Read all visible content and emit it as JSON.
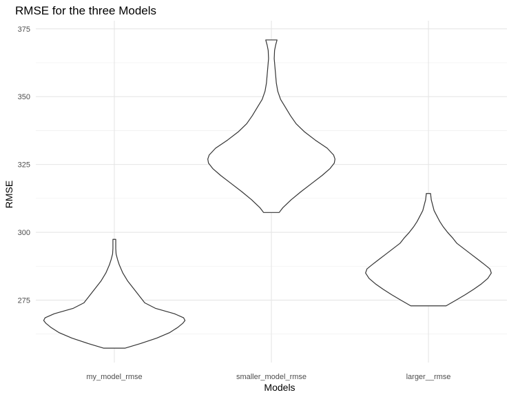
{
  "chart_data": {
    "type": "violin",
    "title": "RMSE for the three Models",
    "xlabel": "Models",
    "ylabel": "RMSE",
    "categories": [
      "my_model_rmse",
      "smaller_model_rmse",
      "larger__rmse"
    ],
    "ylim": [
      252,
      378
    ],
    "yticks": [
      275,
      300,
      325,
      350,
      375
    ],
    "ytick_labels": [
      "275",
      "300",
      "325",
      "350",
      "375"
    ],
    "grid": true,
    "series": [
      {
        "category": "my_model_rmse",
        "min": 257.3,
        "max": 297.4,
        "profile": [
          [
            257.3,
            0.15
          ],
          [
            259,
            0.37
          ],
          [
            261,
            0.6
          ],
          [
            263,
            0.78
          ],
          [
            265,
            0.9
          ],
          [
            266.5,
            0.97
          ],
          [
            267.5,
            1.0
          ],
          [
            268.5,
            0.98
          ],
          [
            270,
            0.85
          ],
          [
            272,
            0.58
          ],
          [
            274,
            0.43
          ],
          [
            276,
            0.37
          ],
          [
            278,
            0.31
          ],
          [
            280,
            0.25
          ],
          [
            282,
            0.19
          ],
          [
            285,
            0.12
          ],
          [
            288,
            0.07
          ],
          [
            290,
            0.045
          ],
          [
            292,
            0.025
          ],
          [
            294,
            0.02
          ],
          [
            296,
            0.02
          ],
          [
            297.4,
            0.02
          ]
        ]
      },
      {
        "category": "smaller_model_rmse",
        "min": 307.3,
        "max": 370.9,
        "profile": [
          [
            307.3,
            0.11
          ],
          [
            309,
            0.16
          ],
          [
            312,
            0.28
          ],
          [
            315,
            0.42
          ],
          [
            318,
            0.57
          ],
          [
            321,
            0.72
          ],
          [
            323.5,
            0.83
          ],
          [
            325.5,
            0.89
          ],
          [
            327,
            0.9
          ],
          [
            328.5,
            0.88
          ],
          [
            331,
            0.79
          ],
          [
            334,
            0.62
          ],
          [
            337,
            0.47
          ],
          [
            340,
            0.35
          ],
          [
            343,
            0.27
          ],
          [
            346,
            0.2
          ],
          [
            349,
            0.13
          ],
          [
            352,
            0.09
          ],
          [
            355,
            0.07
          ],
          [
            358,
            0.06
          ],
          [
            361,
            0.05
          ],
          [
            364,
            0.04
          ],
          [
            367,
            0.045
          ],
          [
            369,
            0.06
          ],
          [
            370.9,
            0.08
          ]
        ]
      },
      {
        "category": "larger__rmse",
        "min": 272.9,
        "max": 314.3,
        "profile": [
          [
            272.9,
            0.25
          ],
          [
            275,
            0.39
          ],
          [
            277,
            0.52
          ],
          [
            279,
            0.64
          ],
          [
            281,
            0.75
          ],
          [
            283,
            0.84
          ],
          [
            285,
            0.89
          ],
          [
            286.5,
            0.87
          ],
          [
            288,
            0.8
          ],
          [
            290,
            0.7
          ],
          [
            292,
            0.6
          ],
          [
            294,
            0.5
          ],
          [
            296,
            0.4
          ],
          [
            298,
            0.34
          ],
          [
            300,
            0.27
          ],
          [
            302,
            0.21
          ],
          [
            304,
            0.16
          ],
          [
            306,
            0.12
          ],
          [
            308,
            0.08
          ],
          [
            310,
            0.06
          ],
          [
            312,
            0.04
          ],
          [
            314.3,
            0.03
          ]
        ]
      }
    ]
  }
}
